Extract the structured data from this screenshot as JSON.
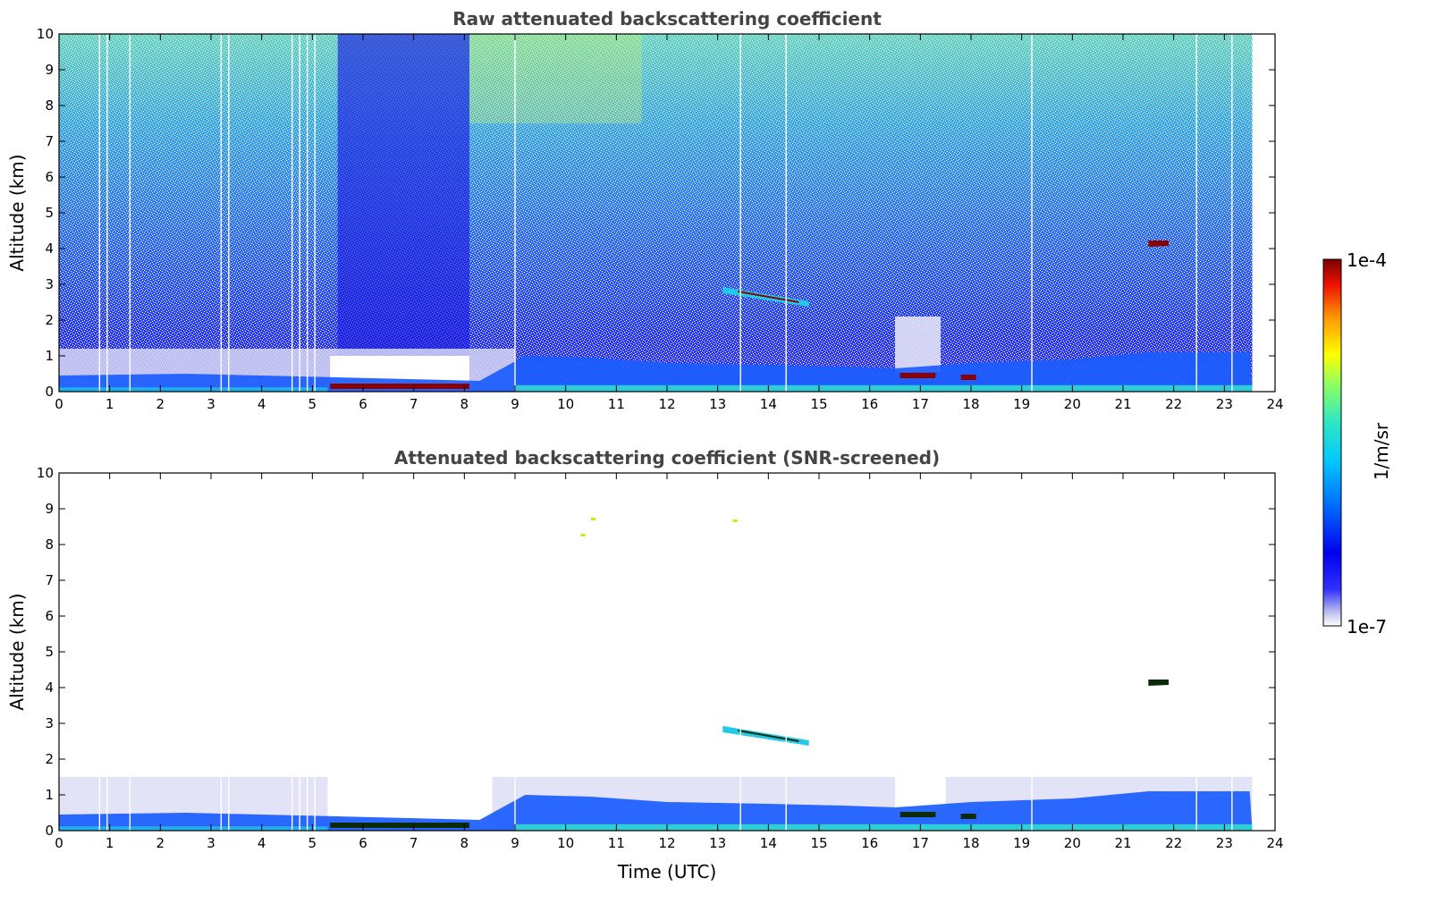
{
  "chart_data": [
    {
      "type": "heatmap",
      "title": "Raw attenuated backscattering coefficient",
      "xlabel": "",
      "ylabel": "Altitude (km)",
      "xlim": [
        0,
        24
      ],
      "ylim": [
        0,
        10
      ],
      "xticks": [
        0,
        1,
        2,
        3,
        4,
        5,
        6,
        7,
        8,
        9,
        10,
        11,
        12,
        13,
        14,
        15,
        16,
        17,
        18,
        19,
        20,
        21,
        22,
        23,
        24
      ],
      "yticks": [
        0,
        1,
        2,
        3,
        4,
        5,
        6,
        7,
        8,
        9,
        10
      ],
      "data_extent_hours": [
        0,
        23.55
      ],
      "colorscale": "jet",
      "features": {
        "boundary_layer_top_km": [
          [
            0,
            0.45
          ],
          [
            2.5,
            0.5
          ],
          [
            5.5,
            0.4
          ],
          [
            8.3,
            0.3
          ],
          [
            9.2,
            1.0
          ],
          [
            10.5,
            0.95
          ],
          [
            12,
            0.8
          ],
          [
            14,
            0.75
          ],
          [
            15.5,
            0.7
          ],
          [
            16.5,
            0.65
          ],
          [
            18,
            0.8
          ],
          [
            20,
            0.9
          ],
          [
            21.5,
            1.1
          ],
          [
            23.5,
            1.1
          ]
        ],
        "low_clouds": [
          {
            "t0": 5.35,
            "t1": 8.1,
            "alt_km": 0.15
          },
          {
            "t0": 16.6,
            "t1": 17.3,
            "alt_km": 0.45
          },
          {
            "t0": 17.8,
            "t1": 18.1,
            "alt_km": 0.4
          }
        ],
        "mid_clouds": [
          {
            "t0": 13.1,
            "t1": 14.8,
            "alt_km": [
              2.85,
              2.45
            ]
          },
          {
            "t0": 21.5,
            "t1": 21.9,
            "alt_km": 4.15
          }
        ],
        "data_gaps_hours": [
          0.8,
          0.95,
          1.4,
          3.2,
          3.35,
          4.6,
          4.75,
          4.9,
          5.05,
          9.0,
          13.45,
          14.35,
          19.2,
          22.45,
          23.15
        ]
      }
    },
    {
      "type": "heatmap",
      "title": "Attenuated backscattering coefficient (SNR-screened)",
      "xlabel": "Time (UTC)",
      "ylabel": "Altitude (km)",
      "xlim": [
        0,
        24
      ],
      "ylim": [
        0,
        10
      ],
      "xticks": [
        0,
        1,
        2,
        3,
        4,
        5,
        6,
        7,
        8,
        9,
        10,
        11,
        12,
        13,
        14,
        15,
        16,
        17,
        18,
        19,
        20,
        21,
        22,
        23,
        24
      ],
      "yticks": [
        0,
        1,
        2,
        3,
        4,
        5,
        6,
        7,
        8,
        9,
        10
      ],
      "data_extent_hours": [
        0,
        23.55
      ],
      "colorscale": "jet",
      "screened_noise_top_km": 1.5,
      "high_specks": [
        {
          "t": 10.5,
          "alt_km": 8.7
        },
        {
          "t": 13.3,
          "alt_km": 8.65
        },
        {
          "t": 10.3,
          "alt_km": 8.25
        }
      ]
    }
  ],
  "colorbar": {
    "label": "1/m/sr",
    "max_label": "1e-4",
    "min_label": "1e-7",
    "scale": "log"
  },
  "colors": {
    "cloud": "#8b0000",
    "screened_cloud": "#0a2a0a",
    "boundary_layer": "#1a5cff",
    "surface": "#30e0d0"
  }
}
